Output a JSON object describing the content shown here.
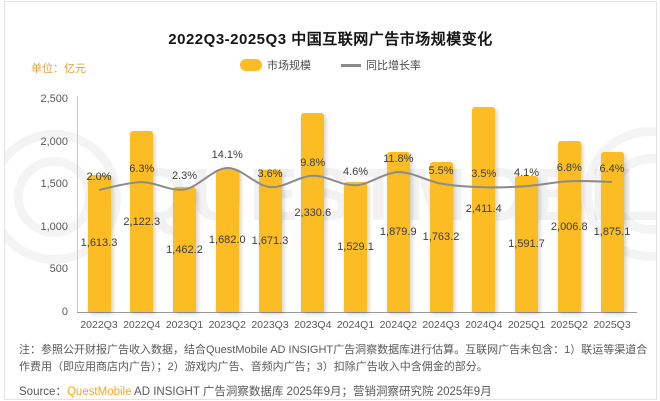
{
  "card": {
    "title": "2022Q3-2025Q3 中国互联网广告市场规模变化",
    "unit_label": "单位：亿元"
  },
  "legend": {
    "bar_label": "市场规模",
    "line_label": "同比增长率"
  },
  "chart_data": {
    "type": "bar+line",
    "title": "2022Q3-2025Q3 中国互联网广告市场规模变化",
    "ylabel": "亿元",
    "categories": [
      "2022Q3",
      "2022Q4",
      "2023Q1",
      "2023Q2",
      "2023Q3",
      "2023Q4",
      "2024Q1",
      "2024Q2",
      "2024Q3",
      "2024Q4",
      "2025Q1",
      "2025Q2",
      "2025Q3"
    ],
    "series": [
      {
        "name": "市场规模",
        "type": "bar",
        "values": [
          1613.3,
          2122.3,
          1462.2,
          1682.0,
          1671.3,
          2330.6,
          1529.1,
          1879.9,
          1763.2,
          2411.4,
          1591.7,
          2006.8,
          1875.1
        ],
        "labels": [
          "1,613.3",
          "2,122.3",
          "1,462.2",
          "1,682.0",
          "1,671.3",
          "2,330.6",
          "1,529.1",
          "1,879.9",
          "1,763.2",
          "2,411.4",
          "1,591.7",
          "2,006.8",
          "1,875.1"
        ]
      },
      {
        "name": "同比增长率",
        "type": "line",
        "values": [
          2.0,
          6.3,
          2.3,
          14.1,
          3.6,
          9.8,
          4.6,
          11.8,
          5.5,
          3.5,
          4.1,
          6.8,
          6.4
        ],
        "labels": [
          "2.0%",
          "6.3%",
          "2.3%",
          "14.1%",
          "3.6%",
          "9.8%",
          "4.6%",
          "11.8%",
          "5.5%",
          "3.5%",
          "4.1%",
          "6.8%",
          "6.4%"
        ]
      }
    ],
    "ylim": [
      0,
      2500
    ],
    "y_ticks": [
      "2,500",
      "2,000",
      "1,500",
      "1,000",
      "500",
      "0"
    ],
    "grid": false,
    "legend_position": "top-center"
  },
  "colors": {
    "bar": "#fbbd23",
    "line": "#8b8b8b",
    "unit_label": "#e2a33c",
    "brand": "#f5a623"
  },
  "watermark": {
    "text": "QUESTMOBILE"
  },
  "footer": {
    "note": "注：参照公开财报广告收入数据，结合QuestMobile AD INSIGHT广告洞察数据库进行估算。互联网广告未包含：1）联运等渠道合作费用（即应用商店内广告）；2）游戏内广告、音频内广告；3）扣除广告收入中含佣金的部分。",
    "source_prefix": "Source：",
    "source_brand": "QuestMobile",
    "source_rest": " AD INSIGHT 广告洞察数据库 2025年9月；营销洞察研究院 2025年9月"
  }
}
